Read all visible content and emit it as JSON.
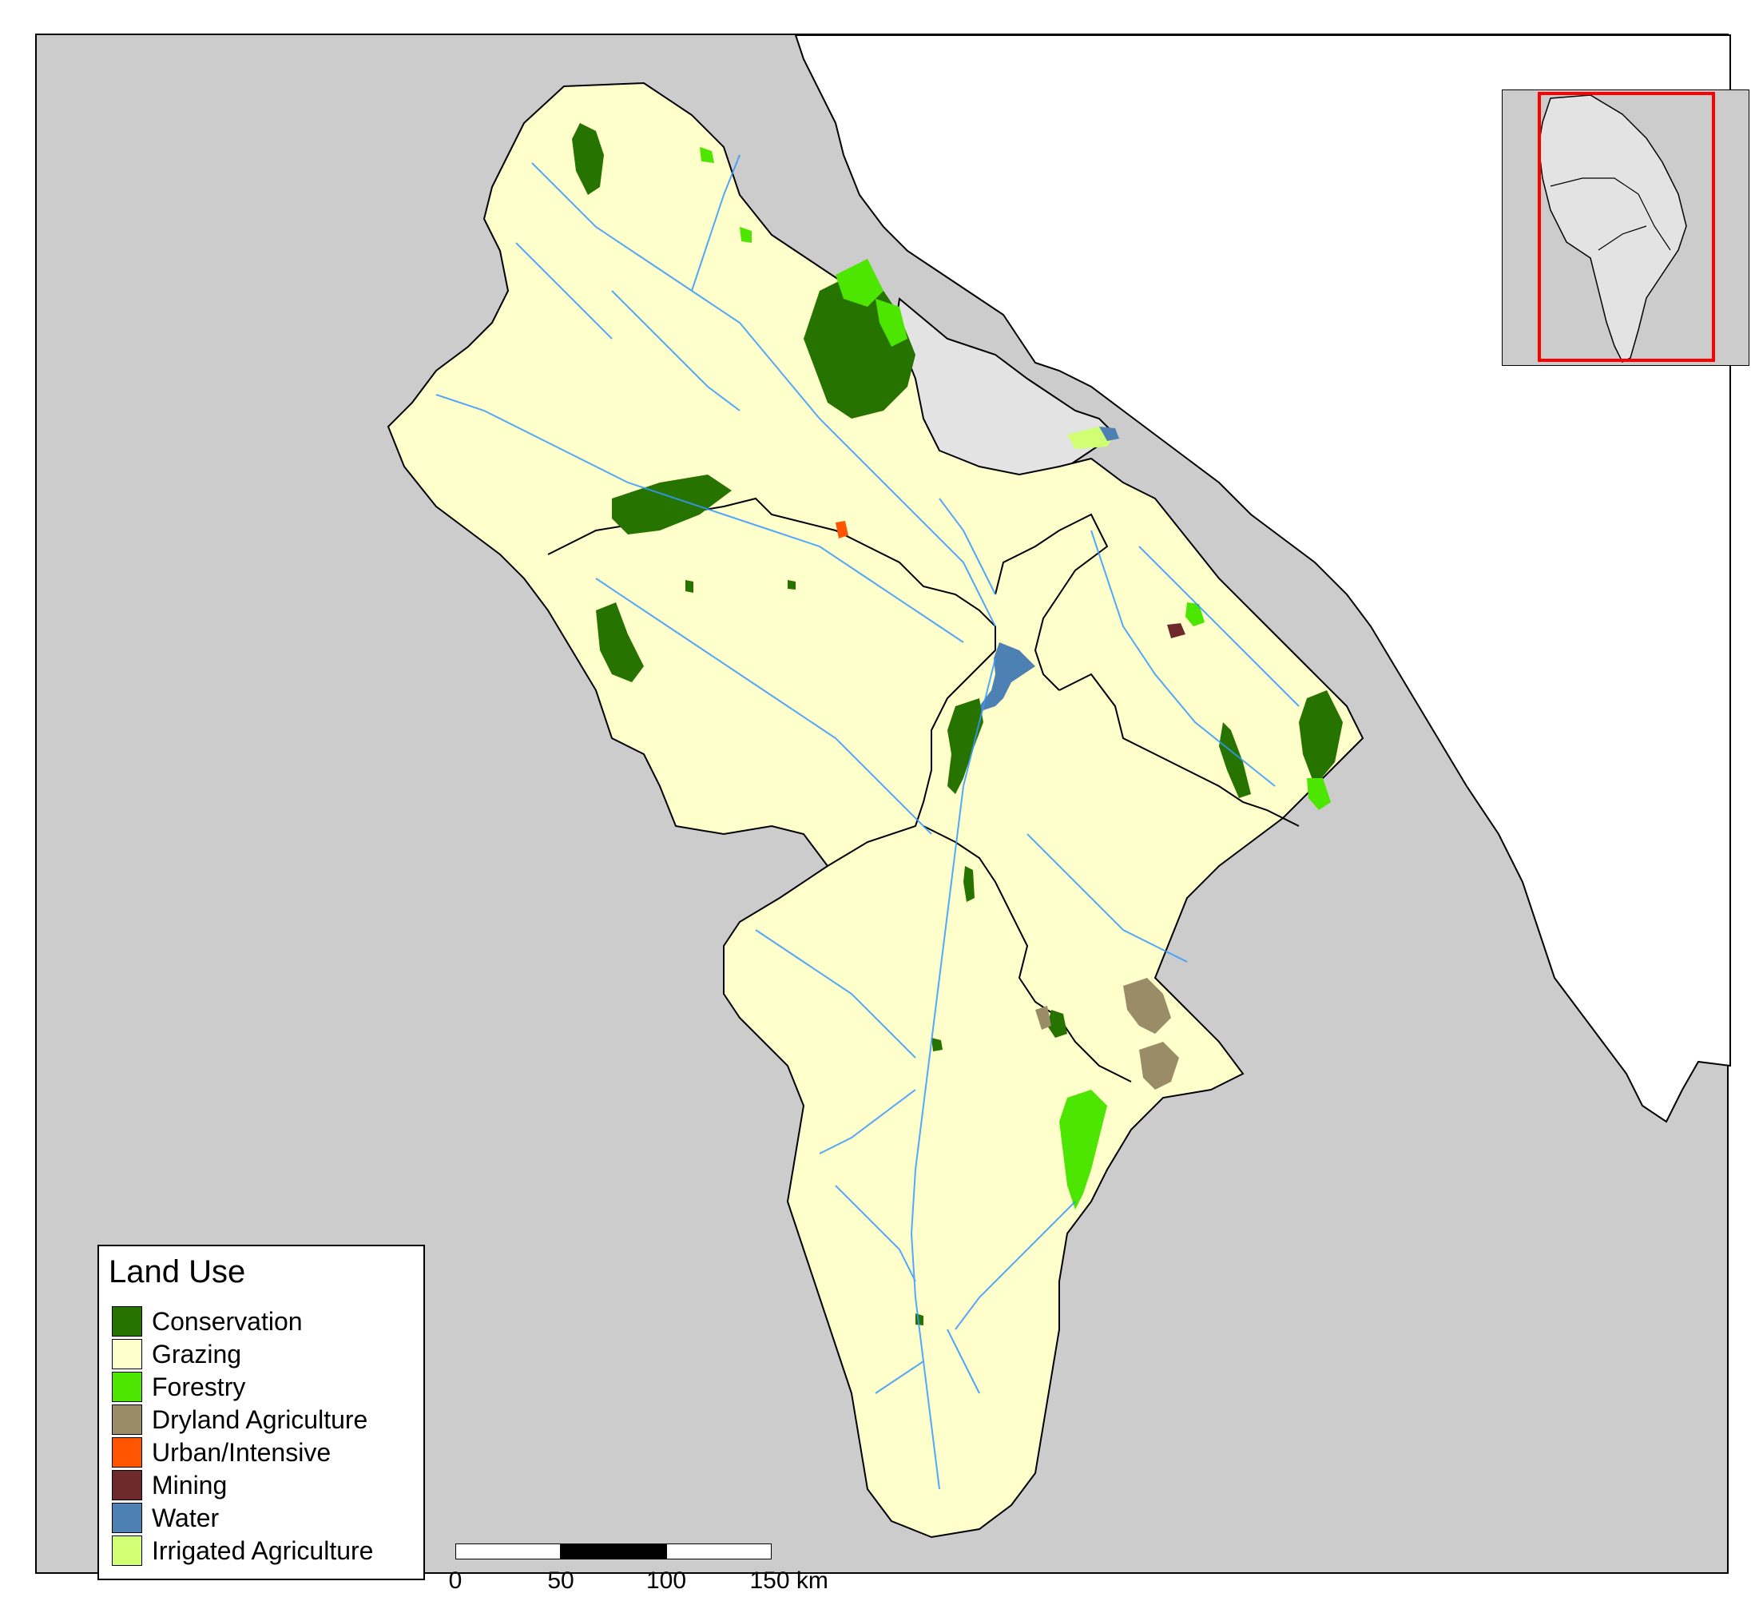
{
  "colors": {
    "background": "#cccccc",
    "coast_land": "#ffffff",
    "bay": "#e3e3e3",
    "grazing": "#ffffcc",
    "conservation": "#267300",
    "forestry": "#4ce600",
    "dryland": "#998c66",
    "urban": "#ff5500",
    "mining": "#6e2a2a",
    "water": "#4d80b3",
    "irrigated": "#d1ff73",
    "rivers": "#3399ff",
    "inset_frame": "#ff0000"
  },
  "legend": {
    "title": "Land Use",
    "items": [
      {
        "label": "Conservation",
        "color": "#267300"
      },
      {
        "label": "Grazing",
        "color": "#ffffcc"
      },
      {
        "label": "Forestry",
        "color": "#4ce600"
      },
      {
        "label": "Dryland Agriculture",
        "color": "#998c66"
      },
      {
        "label": "Urban/Intensive",
        "color": "#ff5500"
      },
      {
        "label": "Mining",
        "color": "#6e2a2a"
      },
      {
        "label": "Water",
        "color": "#4d80b3"
      },
      {
        "label": "Irrigated Agriculture",
        "color": "#d1ff73"
      }
    ]
  },
  "scale_bar": {
    "labels": [
      "0",
      "50",
      "100",
      "150 km"
    ]
  }
}
